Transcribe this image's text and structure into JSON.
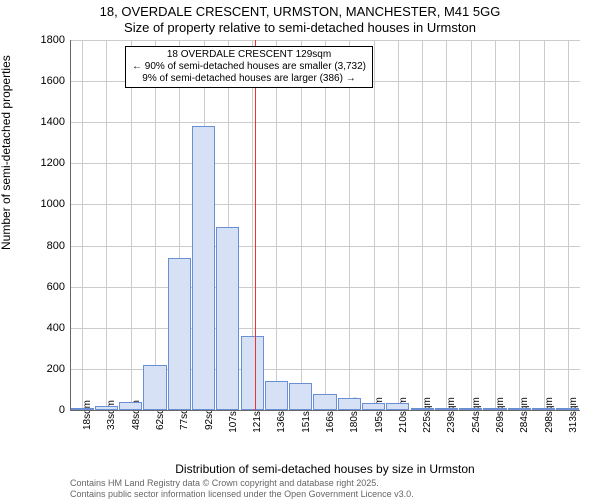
{
  "title_main": "18, OVERDALE CRESCENT, URMSTON, MANCHESTER, M41 5GG",
  "title_sub": "Size of property relative to semi-detached houses in Urmston",
  "ylabel": "Number of semi-detached properties",
  "xlabel": "Distribution of semi-detached houses by size in Urmston",
  "footer1": "Contains HM Land Registry data © Crown copyright and database right 2025.",
  "footer2": "Contains public sector information licensed under the Open Government Licence v3.0.",
  "chart": {
    "type": "histogram",
    "background_color": "#ffffff",
    "grid_color": "#cccccc",
    "bar_fill": "#d6e1f5",
    "bar_stroke": "#6a8fd4",
    "vline_color": "#ee3333",
    "ylim": [
      0,
      1800
    ],
    "ytick_step": 200,
    "yticks": [
      0,
      200,
      400,
      600,
      800,
      1000,
      1200,
      1400,
      1600,
      1800
    ],
    "xtick_labels": [
      "18sqm",
      "33sqm",
      "48sqm",
      "62sqm",
      "77sqm",
      "92sqm",
      "107sqm",
      "121sqm",
      "136sqm",
      "151sqm",
      "166sqm",
      "180sqm",
      "195sqm",
      "210sqm",
      "225sqm",
      "239sqm",
      "254sqm",
      "269sqm",
      "284sqm",
      "298sqm",
      "313sqm"
    ],
    "values": [
      5,
      20,
      40,
      220,
      740,
      1380,
      890,
      360,
      140,
      130,
      80,
      60,
      35,
      35,
      10,
      5,
      5,
      3,
      2,
      2,
      1
    ],
    "vline_at_index": 7.6,
    "annotation": {
      "line1": "18 OVERDALE CRESCENT 129sqm",
      "line2": "← 90% of semi-detached houses are smaller (3,732)",
      "line3": "9% of semi-detached houses are larger (386) →"
    },
    "title_fontsize": 13,
    "label_fontsize": 12,
    "tick_fontsize": 11,
    "annotation_fontsize": 10
  }
}
